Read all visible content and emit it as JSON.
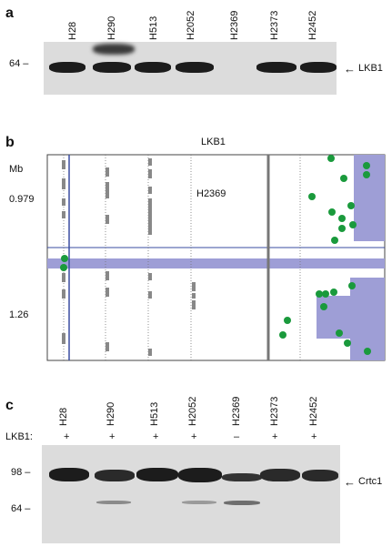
{
  "panel_a": {
    "letter": "a",
    "lanes": [
      "H28",
      "H290",
      "H513",
      "H2052",
      "H2369",
      "H2373",
      "H2452"
    ],
    "marker": "64 –",
    "band_label": "LKB1",
    "arrow": "←"
  },
  "panel_b": {
    "letter": "b",
    "title": "LKB1",
    "axis_unit": "Mb",
    "tick_top": "0.979",
    "tick_bottom": "1.26",
    "sample_label": "H2369"
  },
  "panel_c": {
    "letter": "c",
    "lanes": [
      "H28",
      "H290",
      "H513",
      "H2052",
      "H2369",
      "H2373",
      "H2452"
    ],
    "status_label": "LKB1:",
    "status": [
      "+",
      "+",
      "+",
      "+",
      "–",
      "+",
      "+"
    ],
    "marker_98": "98 –",
    "marker_64": "64 –",
    "band_label": "Crtc1",
    "arrow": "←"
  },
  "colors": {
    "shade": "#9e9ed6",
    "dots": "#1a9a3c",
    "blue_line": "#3a4da0",
    "blot_bg": "#dcdcdc"
  }
}
